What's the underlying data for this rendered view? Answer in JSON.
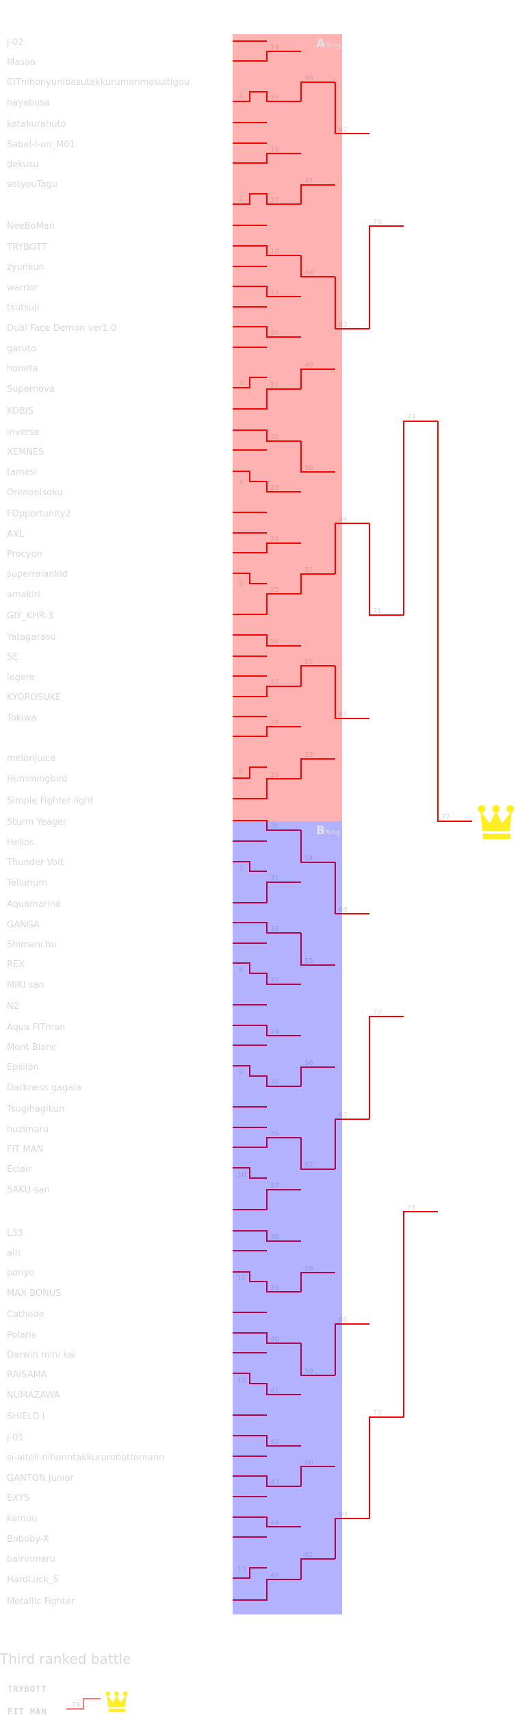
{
  "rings": {
    "a": {
      "letter": "A",
      "suffix": "Ring",
      "color": "#ffb3b3"
    },
    "b": {
      "letter": "B",
      "suffix": "Ring",
      "color": "#b3b3ff"
    }
  },
  "line_color": "#ff0000",
  "crown_color": "#ffee22",
  "entrants": [
    "j-02",
    "Masao",
    "CITnihonyunibasutakkurumanmosuitigou",
    "hayabusa",
    "katakurahuto",
    "Sabel-i-on_M01",
    "dekusu",
    "sotyouTagu",
    "NeeBoMan",
    "TRYBOTT",
    "zyunkun",
    "warrior",
    "tsutsuji",
    "Dual Face Demon ver1.0",
    "garuto",
    "honeta",
    "Supernova",
    "KOBIS",
    "inverse",
    "XEMNES",
    "tamesi",
    "Orenonisoku",
    "FOpportunity2",
    "AXL",
    "Procyon",
    "superraiankid",
    "amakiri",
    "GIY_KHR-3",
    "Yatagarasu",
    "SE",
    "legere",
    "KYOROSUKE",
    "Tokiwa",
    "melonjuice",
    "Hummingbird",
    "Simple Fighter light",
    "Sturm Yeager",
    "Helios",
    "Thunder Volt",
    "Tellurium",
    "Aquamarine",
    "GANGA",
    "Shimanchu",
    "REX",
    "MIKI san",
    "N2",
    "Aqua FITman",
    "Mont Blanc",
    "Epsilon",
    "Darkness gagaia",
    "Tsugihagikun",
    "huzimaru",
    "FIT MAN",
    "Éclair",
    "SAKU-san",
    "L33",
    "ain",
    "ponyo",
    "MAX BONUS",
    "Cathode",
    "Polaris",
    "Darwin mini kai",
    "RAISAMA",
    "NUMAZAWA",
    "SHIELD I",
    "j-01",
    "si-aiteli-nihonntakkururobottomann",
    "GANTON Junior",
    "EXYS",
    "kamuu",
    "Boboby-X",
    "bairinmaru",
    "HardLuck_S",
    "Metallic Fighter"
  ],
  "match_numbers": [
    "1",
    "2",
    "3",
    "4",
    "5",
    "6",
    "7",
    "8",
    "9",
    "10",
    "11",
    "12",
    "13",
    "14",
    "15",
    "16",
    "17",
    "18",
    "19",
    "20",
    "21",
    "22",
    "23",
    "24",
    "25",
    "26",
    "27",
    "28",
    "29",
    "30",
    "31",
    "32",
    "33",
    "34",
    "35",
    "36",
    "37",
    "38",
    "39",
    "40",
    "41",
    "42",
    "43",
    "44",
    "45",
    "46",
    "47",
    "48",
    "49",
    "50",
    "51",
    "52",
    "53",
    "54",
    "55",
    "56",
    "57",
    "58",
    "59",
    "60",
    "61",
    "62",
    "63",
    "64",
    "65",
    "66",
    "67",
    "68",
    "69",
    "70",
    "71",
    "72",
    "73",
    "74",
    "75",
    "77"
  ],
  "third_place": {
    "title": "Third ranked battle",
    "entrants": [
      "TRYBOTT",
      "FIT MAN"
    ],
    "match_number": "76"
  }
}
